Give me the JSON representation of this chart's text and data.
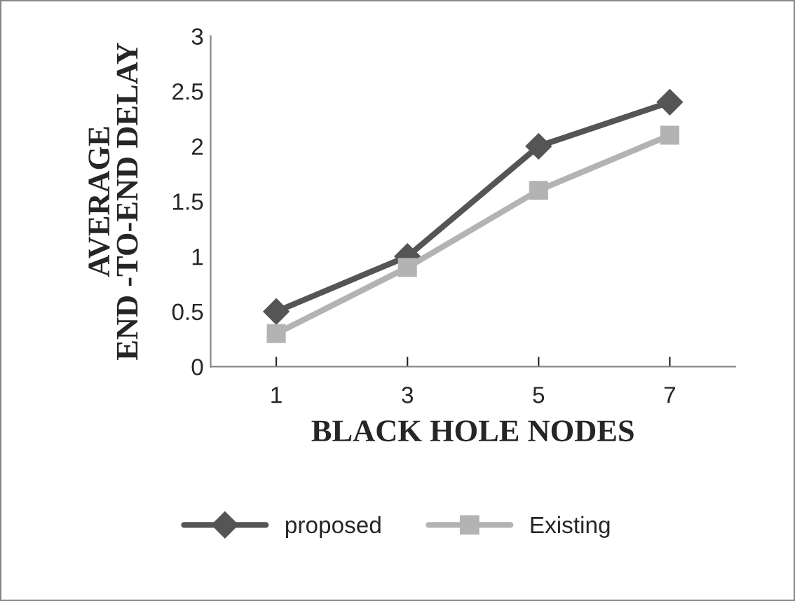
{
  "chart_data": {
    "type": "line",
    "xlabel": "BLACK HOLE NODES",
    "ylabel": "AVERAGE\nEND -TO-END DELAY",
    "categories": [
      "1",
      "3",
      "5",
      "7"
    ],
    "series": [
      {
        "name": "proposed",
        "color": "#555555",
        "marker": "diamond",
        "values": [
          0.5,
          1.0,
          2.0,
          2.4
        ]
      },
      {
        "name": "Existing",
        "color": "#b3b3b3",
        "marker": "square",
        "values": [
          0.3,
          0.9,
          1.6,
          2.1
        ]
      }
    ],
    "ylim": [
      0,
      3
    ],
    "yticks": [
      0,
      0.5,
      1,
      1.5,
      2,
      2.5,
      3
    ],
    "grid": false,
    "legend": "bottom",
    "line_style": "solid"
  }
}
